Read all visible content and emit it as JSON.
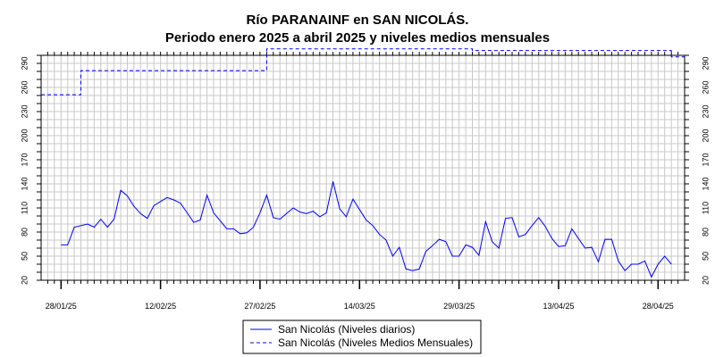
{
  "chart_data": {
    "type": "line",
    "title": "Río PARANAINF en SAN NICOLÁS.",
    "subtitle": "Periodo enero 2025 a abril 2025 y niveles medios mensuales",
    "xlabel": "",
    "ylabel": "",
    "x_range": [
      "2025-01-25",
      "2025-05-02"
    ],
    "ylim": [
      20,
      300
    ],
    "y_ticks": [
      20,
      50,
      80,
      110,
      140,
      170,
      200,
      230,
      260,
      290
    ],
    "x_tick_labels": [
      "28/01/25",
      "12/02/25",
      "27/02/25",
      "14/03/25",
      "29/03/25",
      "13/04/25",
      "28/04/25"
    ],
    "x_tick_dates": [
      "2025-01-28",
      "2025-02-12",
      "2025-02-27",
      "2025-03-14",
      "2025-03-29",
      "2025-04-13",
      "2025-04-28"
    ],
    "grid": true,
    "legend_position": "bottom",
    "series": [
      {
        "name": "San Nicolás (Niveles diarios)",
        "style": "solid",
        "color": "#0000ff",
        "x": [
          "2025-01-28",
          "2025-01-29",
          "2025-01-30",
          "2025-01-31",
          "2025-02-01",
          "2025-02-02",
          "2025-02-03",
          "2025-02-04",
          "2025-02-05",
          "2025-02-06",
          "2025-02-07",
          "2025-02-08",
          "2025-02-09",
          "2025-02-10",
          "2025-02-11",
          "2025-02-12",
          "2025-02-13",
          "2025-02-14",
          "2025-02-15",
          "2025-02-16",
          "2025-02-17",
          "2025-02-18",
          "2025-02-19",
          "2025-02-20",
          "2025-02-21",
          "2025-02-22",
          "2025-02-23",
          "2025-02-24",
          "2025-02-25",
          "2025-02-26",
          "2025-02-27",
          "2025-02-28",
          "2025-03-01",
          "2025-03-02",
          "2025-03-03",
          "2025-03-04",
          "2025-03-05",
          "2025-03-06",
          "2025-03-07",
          "2025-03-08",
          "2025-03-09",
          "2025-03-10",
          "2025-03-11",
          "2025-03-12",
          "2025-03-13",
          "2025-03-14",
          "2025-03-15",
          "2025-03-16",
          "2025-03-17",
          "2025-03-18",
          "2025-03-19",
          "2025-03-20",
          "2025-03-21",
          "2025-03-22",
          "2025-03-23",
          "2025-03-24",
          "2025-03-25",
          "2025-03-26",
          "2025-03-27",
          "2025-03-28",
          "2025-03-29",
          "2025-03-30",
          "2025-03-31",
          "2025-04-01",
          "2025-04-02",
          "2025-04-03",
          "2025-04-04",
          "2025-04-05",
          "2025-04-06",
          "2025-04-07",
          "2025-04-08",
          "2025-04-09",
          "2025-04-10",
          "2025-04-11",
          "2025-04-12",
          "2025-04-13",
          "2025-04-14",
          "2025-04-15",
          "2025-04-16",
          "2025-04-17",
          "2025-04-18",
          "2025-04-19",
          "2025-04-20",
          "2025-04-21",
          "2025-04-22",
          "2025-04-23",
          "2025-04-24",
          "2025-04-25",
          "2025-04-26",
          "2025-04-27",
          "2025-04-28",
          "2025-04-29",
          "2025-04-30"
        ],
        "y": [
          64,
          64,
          86,
          88,
          90,
          86,
          96,
          86,
          96,
          132,
          125,
          112,
          103,
          97,
          113,
          118,
          123,
          120,
          116,
          104,
          92,
          95,
          126,
          104,
          94,
          84,
          84,
          78,
          79,
          86,
          104,
          126,
          98,
          96,
          103,
          110,
          105,
          103,
          106,
          99,
          104,
          143,
          109,
          99,
          121,
          108,
          95,
          88,
          77,
          70,
          50,
          61,
          34,
          32,
          34,
          56,
          63,
          71,
          68,
          50,
          50,
          64,
          61,
          51,
          93,
          68,
          60,
          97,
          98,
          74,
          77,
          88,
          98,
          87,
          72,
          62,
          63,
          84,
          72,
          60,
          61,
          43,
          71,
          71,
          44,
          32,
          40,
          40,
          44,
          24,
          40,
          50,
          40
        ]
      },
      {
        "name": "San Nicolás (Niveles Medios Mensuales)",
        "style": "dashed",
        "color": "#0000ff",
        "x": [
          "2025-01-25",
          "2025-01-31",
          "2025-01-31",
          "2025-02-28",
          "2025-02-28",
          "2025-03-31",
          "2025-03-31",
          "2025-04-30",
          "2025-04-30",
          "2025-05-02"
        ],
        "y": [
          251,
          251,
          281,
          281,
          308,
          308,
          306,
          306,
          298,
          298
        ]
      }
    ]
  }
}
